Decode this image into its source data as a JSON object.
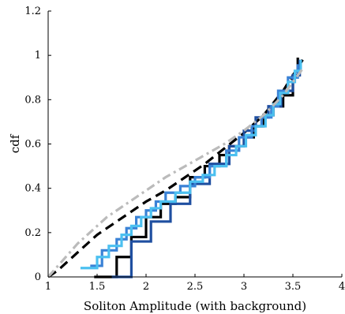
{
  "chart_data": {
    "type": "line",
    "title": "",
    "xlabel": "Soliton Amplitude (with background)",
    "ylabel": "cdf",
    "xlim": [
      1,
      4
    ],
    "ylim": [
      0,
      1.2
    ],
    "xticks": [
      "1",
      "1.5",
      "2",
      "2.5",
      "3",
      "3.5",
      "4"
    ],
    "yticks": [
      "0",
      "0.2",
      "0.4",
      "0.6",
      "0.8",
      "1",
      "1.2"
    ],
    "grid": false,
    "legend": "none",
    "series": [
      {
        "kind": "curve",
        "color": "#000000",
        "dash": "long-dash",
        "x": [
          1.0,
          1.1,
          1.2,
          1.3,
          1.4,
          1.5,
          1.6,
          1.7,
          1.8,
          1.9,
          2.0,
          2.2,
          2.4,
          2.6,
          2.8,
          3.0,
          3.2,
          3.4,
          3.5,
          3.6
        ],
        "y": [
          0.0,
          0.03,
          0.07,
          0.11,
          0.15,
          0.19,
          0.22,
          0.25,
          0.28,
          0.31,
          0.34,
          0.39,
          0.45,
          0.51,
          0.58,
          0.65,
          0.73,
          0.84,
          0.91,
          0.98
        ]
      },
      {
        "kind": "curve",
        "color": "#bbbbbb",
        "dash": "dash-dot",
        "x": [
          1.0,
          1.1,
          1.2,
          1.3,
          1.4,
          1.5,
          1.6,
          1.7,
          1.8,
          1.9,
          2.0,
          2.2,
          2.4,
          2.6,
          2.8,
          3.0,
          3.2,
          3.4,
          3.5,
          3.6
        ],
        "y": [
          0.0,
          0.05,
          0.1,
          0.15,
          0.19,
          0.23,
          0.27,
          0.3,
          0.33,
          0.36,
          0.39,
          0.45,
          0.5,
          0.55,
          0.6,
          0.66,
          0.73,
          0.82,
          0.88,
          0.94
        ]
      },
      {
        "kind": "step",
        "color": "#000000",
        "x": [
          1.47,
          1.7,
          1.85,
          2.0,
          2.15,
          2.3,
          2.45,
          2.6,
          2.75,
          2.85,
          3.0,
          3.1,
          3.2,
          3.3,
          3.4,
          3.5,
          3.55
        ],
        "y": [
          0.0,
          0.09,
          0.18,
          0.27,
          0.33,
          0.36,
          0.45,
          0.5,
          0.55,
          0.59,
          0.63,
          0.68,
          0.73,
          0.77,
          0.82,
          0.91,
          0.99
        ]
      },
      {
        "kind": "step",
        "color": "#1f4fa0",
        "x": [
          1.65,
          1.85,
          2.05,
          2.25,
          2.45,
          2.65,
          2.85,
          3.0,
          3.12,
          3.25,
          3.38,
          3.5,
          3.57
        ],
        "y": [
          0.0,
          0.16,
          0.25,
          0.33,
          0.42,
          0.51,
          0.59,
          0.66,
          0.72,
          0.77,
          0.84,
          0.91,
          0.98
        ]
      },
      {
        "kind": "step",
        "color": "#3a82d6",
        "x": [
          1.43,
          1.55,
          1.7,
          1.8,
          1.9,
          2.0,
          2.1,
          2.2,
          2.35,
          2.5,
          2.65,
          2.82,
          2.95,
          3.08,
          3.18,
          3.28,
          3.35,
          3.45,
          3.55
        ],
        "y": [
          0.05,
          0.12,
          0.17,
          0.22,
          0.27,
          0.3,
          0.34,
          0.38,
          0.41,
          0.45,
          0.5,
          0.57,
          0.63,
          0.68,
          0.72,
          0.77,
          0.84,
          0.9,
          0.96
        ]
      },
      {
        "kind": "step",
        "color": "#4cc0f0",
        "x": [
          1.33,
          1.5,
          1.62,
          1.75,
          1.85,
          1.95,
          2.05,
          2.15,
          2.3,
          2.45,
          2.58,
          2.7,
          2.82,
          2.92,
          3.02,
          3.12,
          3.22,
          3.3,
          3.37,
          3.45,
          3.52,
          3.58
        ],
        "y": [
          0.04,
          0.09,
          0.14,
          0.19,
          0.23,
          0.27,
          0.31,
          0.34,
          0.38,
          0.43,
          0.46,
          0.5,
          0.55,
          0.59,
          0.64,
          0.68,
          0.73,
          0.78,
          0.83,
          0.88,
          0.93,
          0.98
        ]
      }
    ]
  }
}
